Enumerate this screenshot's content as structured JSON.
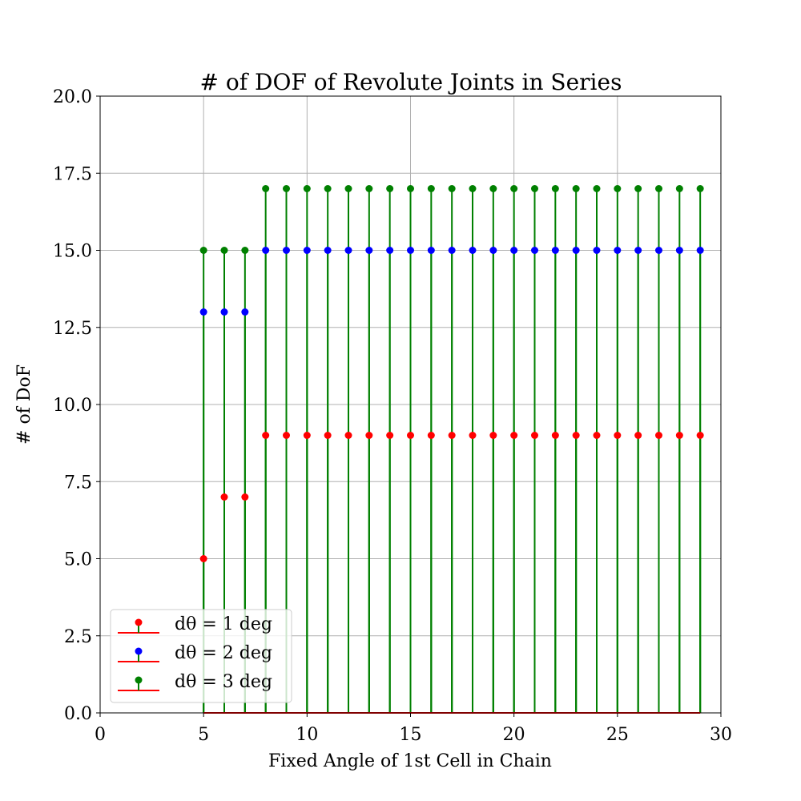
{
  "chart_data": {
    "type": "stem",
    "title": "# of DOF of Revolute Joints in Series",
    "xlabel": "Fixed Angle of 1st Cell in Chain",
    "ylabel": "# of DoF",
    "xlim": [
      0,
      30
    ],
    "ylim": [
      0,
      20
    ],
    "xticks": [
      "0",
      "5",
      "10",
      "15",
      "20",
      "25",
      "30"
    ],
    "yticks": [
      "0.0",
      "2.5",
      "5.0",
      "7.5",
      "10.0",
      "12.5",
      "15.0",
      "17.5",
      "20.0"
    ],
    "grid": true,
    "legend_position": "lower-left",
    "x": [
      5,
      6,
      7,
      8,
      9,
      10,
      11,
      12,
      13,
      14,
      15,
      16,
      17,
      18,
      19,
      20,
      21,
      22,
      23,
      24,
      25,
      26,
      27,
      28,
      29
    ],
    "series": [
      {
        "name": "dθ = 1 deg",
        "marker_color": "#ff0000",
        "values": [
          5,
          7,
          7,
          9,
          9,
          9,
          9,
          9,
          9,
          9,
          9,
          9,
          9,
          9,
          9,
          9,
          9,
          9,
          9,
          9,
          9,
          9,
          9,
          9,
          9
        ]
      },
      {
        "name": "dθ = 2 deg",
        "marker_color": "#0000ff",
        "values": [
          13,
          13,
          13,
          15,
          15,
          15,
          15,
          15,
          15,
          15,
          15,
          15,
          15,
          15,
          15,
          15,
          15,
          15,
          15,
          15,
          15,
          15,
          15,
          15,
          15
        ]
      },
      {
        "name": "dθ = 3 deg",
        "marker_color": "#008000",
        "values": [
          15,
          15,
          15,
          17,
          17,
          17,
          17,
          17,
          17,
          17,
          17,
          17,
          17,
          17,
          17,
          17,
          17,
          17,
          17,
          17,
          17,
          17,
          17,
          17,
          17
        ]
      }
    ],
    "stem_color": "#008000",
    "baseline_color": "#ff0000"
  }
}
